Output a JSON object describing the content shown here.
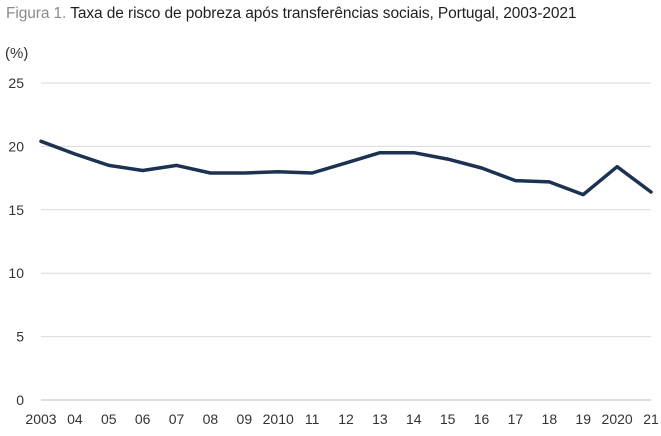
{
  "chart_data": {
    "type": "line",
    "title_prefix": "Figura 1.",
    "title": "Taxa de risco de pobreza após transferências sociais, Portugal, 2003-2021",
    "unit": "(%)",
    "x_labels": [
      "2003",
      "04",
      "05",
      "06",
      "07",
      "08",
      "09",
      "2010",
      "11",
      "12",
      "13",
      "14",
      "15",
      "16",
      "17",
      "18",
      "19",
      "2020",
      "21"
    ],
    "series": [
      {
        "values": [
          20.4,
          19.4,
          18.5,
          18.1,
          18.5,
          17.9,
          17.9,
          18.0,
          17.9,
          18.7,
          19.5,
          19.5,
          19.0,
          18.3,
          17.3,
          17.2,
          16.2,
          18.4,
          16.4
        ]
      }
    ],
    "ylim": [
      0,
      25
    ],
    "yticks": [
      0,
      5,
      10,
      15,
      20,
      25
    ],
    "grid": true,
    "line_color": "#1b3252",
    "grid_color": "#d9d9d9"
  }
}
